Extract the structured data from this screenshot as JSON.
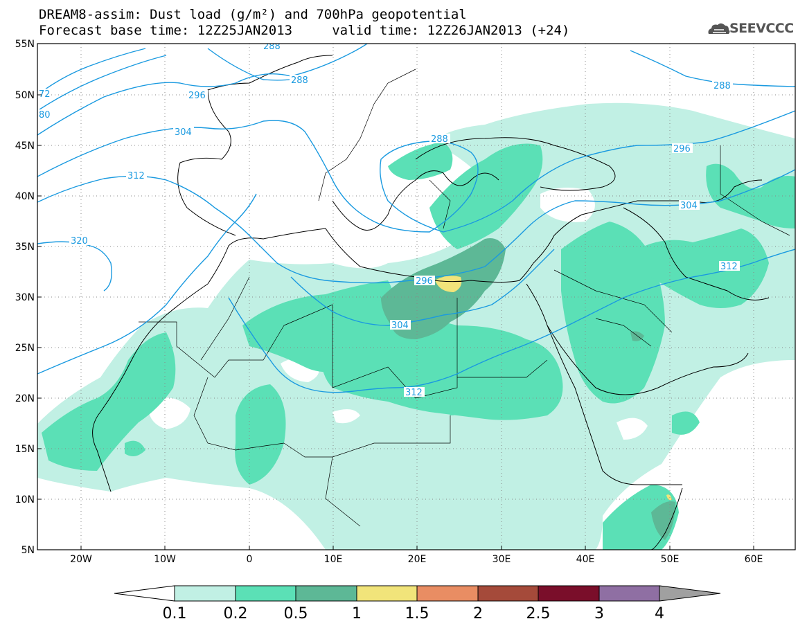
{
  "header": {
    "title_line1": "DREAM8-assim: Dust load (g/m²) and 700hPa geopotential",
    "title_line2": "Forecast base time: 12Z25JAN2013     valid time: 12Z26JAN2013 (+24)",
    "logo_text": "SEEVCCC"
  },
  "map": {
    "lat_labels": [
      "55N",
      "50N",
      "45N",
      "40N",
      "35N",
      "30N",
      "25N",
      "20N",
      "15N",
      "10N",
      "5N"
    ],
    "lon_labels": [
      "20W",
      "10W",
      "0",
      "10E",
      "20E",
      "30E",
      "40E",
      "50E",
      "60E"
    ],
    "contour_labels": [
      "288",
      "288",
      "296",
      "304",
      "312",
      "320",
      "72",
      "80",
      "288",
      "288",
      "296",
      "296",
      "304",
      "304",
      "312",
      "312"
    ],
    "colors": {
      "coast": "#000000",
      "contour": "#1a9ae0",
      "grid": "#888888"
    }
  },
  "colorbar": {
    "labels": [
      "0.1",
      "0.2",
      "0.5",
      "1",
      "1.5",
      "2",
      "2.5",
      "3",
      "4"
    ],
    "colors": [
      "#c1f0e4",
      "#5be0b6",
      "#5db896",
      "#f1e47a",
      "#e98d63",
      "#a54a3a",
      "#7a0e2a",
      "#8f6fa3",
      "#a0a0a0"
    ]
  }
}
